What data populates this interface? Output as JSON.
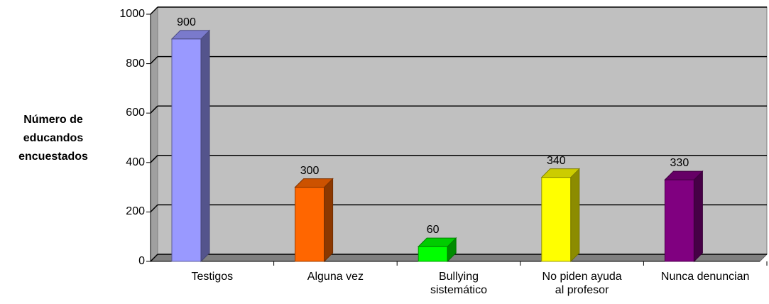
{
  "chart_data": {
    "type": "bar3d",
    "y_label": "Número de\neducandos\nencuestados",
    "categories": [
      "Testigos",
      "Alguna vez",
      "Bullying\nsistemático",
      "No piden ayuda\nal profesor",
      "Nunca denuncian"
    ],
    "values": [
      900,
      300,
      60,
      340,
      330
    ],
    "colors": [
      "#9999ff",
      "#ff6600",
      "#00ff00",
      "#ffff00",
      "#800080"
    ],
    "ylim": [
      0,
      1000
    ],
    "yticks": [
      0,
      200,
      400,
      600,
      800,
      1000
    ],
    "grid": true
  }
}
